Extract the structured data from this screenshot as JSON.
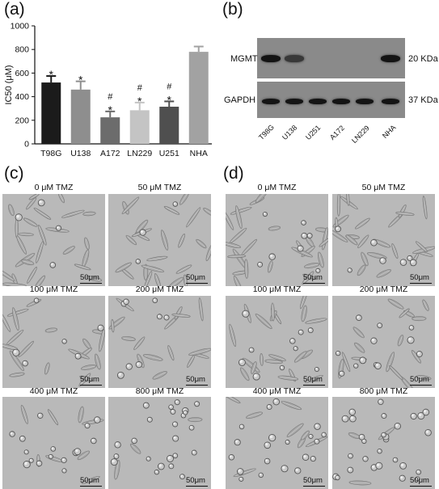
{
  "panel_labels": {
    "a": "(a)",
    "b": "(b)",
    "c": "(c)",
    "d": "(d)"
  },
  "chart_data": {
    "type": "bar",
    "ylabel": "IC50 (μM)",
    "xlabel": "",
    "ylim": [
      0,
      1000
    ],
    "yticks": [
      "0",
      "200",
      "400",
      "600",
      "800",
      "1000"
    ],
    "categories": [
      "T98G",
      "U138",
      "A172",
      "LN229",
      "U251",
      "NHA"
    ],
    "values": [
      520,
      460,
      225,
      285,
      315,
      780
    ],
    "errors": [
      55,
      70,
      50,
      65,
      45,
      45
    ],
    "annotations": [
      "*",
      "*",
      "#\n*",
      "#\n*",
      "#\n*",
      ""
    ],
    "colors": [
      "#1b1b1b",
      "#8e8e8e",
      "#6c6c6c",
      "#c4c4c4",
      "#4f4f4f",
      "#a2a2a2"
    ],
    "grid": false
  },
  "western_blot": {
    "rows": [
      {
        "name": "MGMT",
        "size": "20 KDa",
        "bands": [
          1.0,
          0.6,
          0.0,
          0.0,
          0.0,
          1.0
        ]
      },
      {
        "name": "GAPDH",
        "size": "37 KDa",
        "bands": [
          1.0,
          1.0,
          1.0,
          1.0,
          1.0,
          1.0
        ]
      }
    ],
    "lanes": [
      "T98G",
      "U138",
      "U251",
      "A172",
      "LN229",
      "NHA"
    ]
  },
  "micrographs": {
    "scale_bar": "50μm",
    "c": [
      "0 μM TMZ",
      "50 μM TMZ",
      "100 μM TMZ",
      "200 μM TMZ",
      "400 μM TMZ",
      "800 μM TMZ"
    ],
    "d": [
      "0 μM TMZ",
      "50 μM TMZ",
      "100 μM TMZ",
      "200 μM TMZ",
      "400 μM TMZ",
      "800 μM TMZ"
    ]
  }
}
